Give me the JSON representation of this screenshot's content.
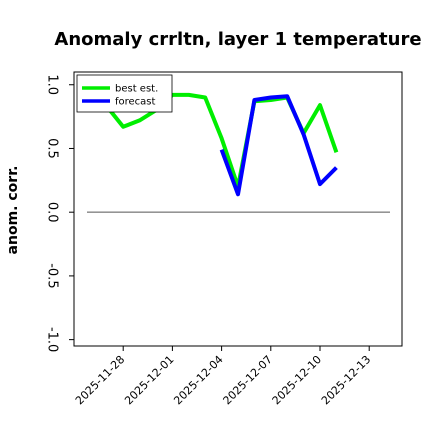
{
  "chart_data": {
    "type": "line",
    "title": "Anomaly crrltn, layer 1 temperature",
    "ylabel": "anom. corr.",
    "xlabel": "",
    "ylim": [
      -1.05,
      1.1
    ],
    "yticks": [
      -1.0,
      -0.5,
      0.0,
      0.5,
      1.0
    ],
    "ytick_labels": [
      "-1.0",
      "-0.5",
      "0.0",
      "0.5",
      "1.0"
    ],
    "xlim": [
      "2025-11-25",
      "2025-12-15"
    ],
    "xticks": [
      "2025-11-28",
      "2025-12-01",
      "2025-12-04",
      "2025-12-07",
      "2025-12-10",
      "2025-12-13"
    ],
    "highlight_tick": "2025-12-04",
    "reference_line": 0.0,
    "grid": false,
    "legend_position": "top-left",
    "series": [
      {
        "name": "best est.",
        "color": "#00ee00",
        "x": [
          "2025-11-26",
          "2025-11-27",
          "2025-11-28",
          "2025-11-29",
          "2025-11-30",
          "2025-12-01",
          "2025-12-02",
          "2025-12-03",
          "2025-12-04",
          "2025-12-05",
          "2025-12-06",
          "2025-12-07",
          "2025-12-08",
          "2025-12-09",
          "2025-12-10",
          "2025-12-11"
        ],
        "y": [
          0.84,
          0.83,
          0.67,
          0.72,
          0.8,
          0.92,
          0.92,
          0.9,
          0.58,
          0.2,
          0.87,
          0.88,
          0.9,
          0.62,
          0.84,
          0.47
        ]
      },
      {
        "name": "forecast",
        "color": "#0000ff",
        "x": [
          "2025-12-04",
          "2025-12-05",
          "2025-12-06",
          "2025-12-07",
          "2025-12-08",
          "2025-12-09",
          "2025-12-10",
          "2025-12-11"
        ],
        "y": [
          0.49,
          0.14,
          0.88,
          0.9,
          0.91,
          0.61,
          0.22,
          0.35
        ]
      }
    ]
  }
}
